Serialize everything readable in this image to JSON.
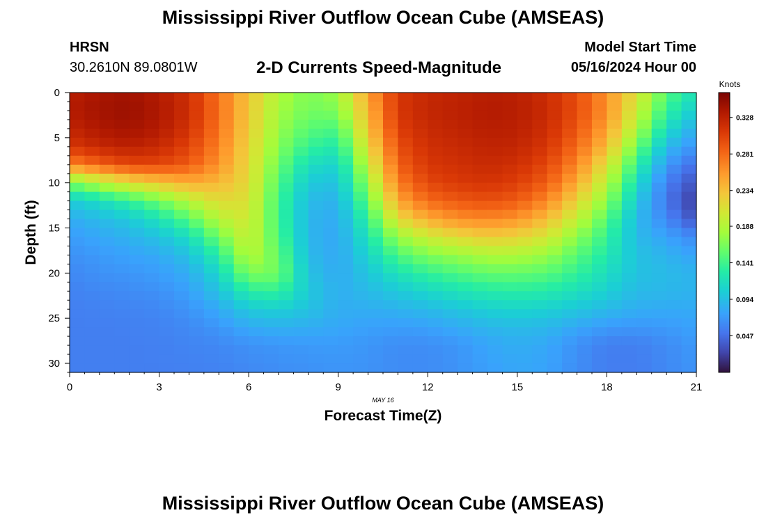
{
  "header": {
    "title": "Mississippi River Outflow Ocean Cube (AMSEAS)",
    "station": "HRSN",
    "coordinates": "30.2610N  89.0801W",
    "subtitle": "2-D Currents Speed-Magnitude",
    "start_label": "Model Start Time",
    "start_value": "05/16/2024 Hour 00"
  },
  "footer": {
    "title": "Mississippi River Outflow Ocean Cube (AMSEAS)"
  },
  "chart_data": {
    "type": "heatmap",
    "title": "2-D Currents Speed-Magnitude",
    "xlabel": "Forecast Time(Z)",
    "ylabel": "Depth (ft)",
    "date_label": "MAY 16",
    "xlim": [
      0,
      21
    ],
    "ylim": [
      0,
      31
    ],
    "y_inverted": true,
    "x_ticks": [
      0,
      3,
      6,
      9,
      12,
      15,
      18,
      21
    ],
    "y_ticks": [
      0,
      5,
      10,
      15,
      20,
      25,
      30
    ],
    "colorbar": {
      "title": "Knots",
      "min": 0.0,
      "max": 0.36,
      "ticks": [
        "0.328",
        "0.281",
        "0.234",
        "0.188",
        "0.141",
        "0.094",
        "0.047"
      ]
    },
    "x": [
      0,
      1,
      2,
      3,
      4,
      5,
      6,
      7,
      8,
      9,
      10,
      11,
      12,
      13,
      14,
      15,
      16,
      17,
      18,
      19,
      20,
      21
    ],
    "depths": [
      0,
      2,
      4,
      6,
      8,
      10,
      12,
      14,
      16,
      18,
      20,
      22,
      24,
      26,
      28,
      31
    ],
    "values": [
      [
        0.33,
        0.338,
        0.342,
        0.333,
        0.316,
        0.276,
        0.231,
        0.186,
        0.165,
        0.178,
        0.251,
        0.311,
        0.322,
        0.326,
        0.331,
        0.329,
        0.318,
        0.296,
        0.259,
        0.211,
        0.151,
        0.118
      ],
      [
        0.333,
        0.341,
        0.345,
        0.336,
        0.318,
        0.279,
        0.229,
        0.181,
        0.161,
        0.166,
        0.241,
        0.311,
        0.324,
        0.328,
        0.333,
        0.331,
        0.32,
        0.298,
        0.261,
        0.201,
        0.136,
        0.101
      ],
      [
        0.325,
        0.336,
        0.341,
        0.333,
        0.314,
        0.276,
        0.226,
        0.176,
        0.151,
        0.146,
        0.231,
        0.306,
        0.321,
        0.326,
        0.331,
        0.329,
        0.318,
        0.292,
        0.251,
        0.186,
        0.116,
        0.081
      ],
      [
        0.311,
        0.322,
        0.329,
        0.321,
        0.303,
        0.269,
        0.221,
        0.168,
        0.136,
        0.126,
        0.216,
        0.296,
        0.316,
        0.321,
        0.326,
        0.324,
        0.311,
        0.281,
        0.236,
        0.161,
        0.091,
        0.066
      ],
      [
        0.266,
        0.286,
        0.301,
        0.301,
        0.289,
        0.259,
        0.218,
        0.158,
        0.116,
        0.108,
        0.196,
        0.286,
        0.311,
        0.316,
        0.321,
        0.316,
        0.301,
        0.266,
        0.211,
        0.136,
        0.071,
        0.046
      ],
      [
        0.161,
        0.191,
        0.216,
        0.231,
        0.246,
        0.239,
        0.216,
        0.148,
        0.101,
        0.096,
        0.176,
        0.271,
        0.301,
        0.309,
        0.313,
        0.306,
        0.288,
        0.246,
        0.191,
        0.116,
        0.056,
        0.031
      ],
      [
        0.101,
        0.116,
        0.136,
        0.161,
        0.191,
        0.216,
        0.211,
        0.141,
        0.091,
        0.086,
        0.156,
        0.249,
        0.281,
        0.291,
        0.296,
        0.289,
        0.266,
        0.221,
        0.171,
        0.101,
        0.051,
        0.021
      ],
      [
        0.082,
        0.091,
        0.101,
        0.121,
        0.151,
        0.191,
        0.206,
        0.141,
        0.088,
        0.081,
        0.136,
        0.216,
        0.246,
        0.261,
        0.266,
        0.259,
        0.236,
        0.196,
        0.151,
        0.091,
        0.061,
        0.031
      ],
      [
        0.072,
        0.079,
        0.086,
        0.096,
        0.116,
        0.161,
        0.201,
        0.146,
        0.088,
        0.079,
        0.121,
        0.176,
        0.201,
        0.216,
        0.226,
        0.221,
        0.206,
        0.171,
        0.136,
        0.091,
        0.076,
        0.061
      ],
      [
        0.066,
        0.071,
        0.076,
        0.081,
        0.096,
        0.131,
        0.191,
        0.156,
        0.091,
        0.079,
        0.108,
        0.146,
        0.166,
        0.176,
        0.186,
        0.186,
        0.176,
        0.151,
        0.126,
        0.096,
        0.086,
        0.076
      ],
      [
        0.061,
        0.066,
        0.069,
        0.073,
        0.083,
        0.111,
        0.166,
        0.161,
        0.096,
        0.081,
        0.098,
        0.121,
        0.136,
        0.146,
        0.156,
        0.156,
        0.151,
        0.136,
        0.116,
        0.096,
        0.091,
        0.086
      ],
      [
        0.058,
        0.061,
        0.063,
        0.066,
        0.075,
        0.096,
        0.131,
        0.136,
        0.101,
        0.083,
        0.091,
        0.101,
        0.111,
        0.121,
        0.128,
        0.131,
        0.128,
        0.118,
        0.106,
        0.091,
        0.089,
        0.086
      ],
      [
        0.056,
        0.058,
        0.059,
        0.061,
        0.068,
        0.081,
        0.101,
        0.106,
        0.096,
        0.083,
        0.083,
        0.086,
        0.091,
        0.098,
        0.106,
        0.109,
        0.106,
        0.099,
        0.091,
        0.083,
        0.081,
        0.081
      ],
      [
        0.056,
        0.056,
        0.057,
        0.058,
        0.062,
        0.069,
        0.081,
        0.085,
        0.083,
        0.079,
        0.075,
        0.073,
        0.075,
        0.081,
        0.088,
        0.091,
        0.089,
        0.079,
        0.071,
        0.069,
        0.071,
        0.076
      ],
      [
        0.056,
        0.056,
        0.056,
        0.057,
        0.059,
        0.061,
        0.066,
        0.069,
        0.071,
        0.072,
        0.069,
        0.064,
        0.064,
        0.069,
        0.078,
        0.083,
        0.079,
        0.066,
        0.056,
        0.056,
        0.063,
        0.071
      ],
      [
        0.056,
        0.056,
        0.056,
        0.056,
        0.057,
        0.058,
        0.061,
        0.064,
        0.066,
        0.068,
        0.067,
        0.063,
        0.063,
        0.067,
        0.074,
        0.079,
        0.076,
        0.064,
        0.055,
        0.055,
        0.061,
        0.068
      ]
    ]
  }
}
